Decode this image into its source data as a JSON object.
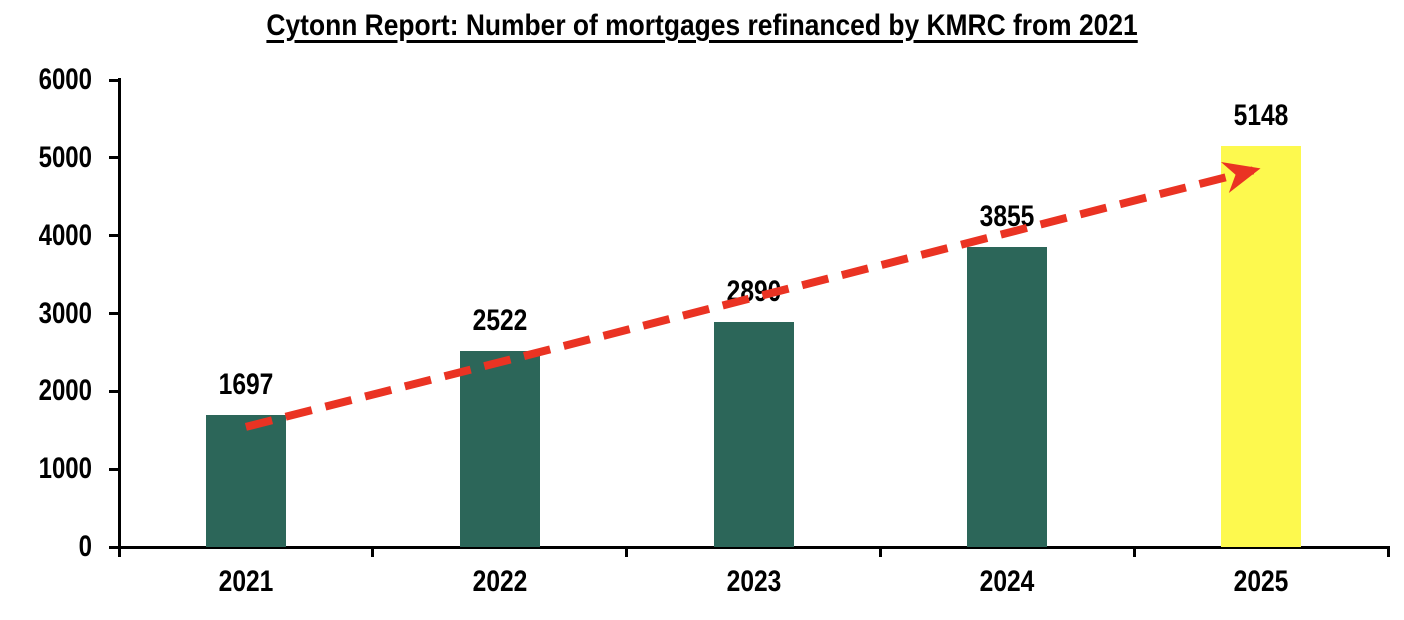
{
  "chart_data": {
    "type": "bar",
    "title": "Cytonn Report: Number of mortgages refinanced by KMRC from 2021",
    "categories": [
      "2021",
      "2022",
      "2023",
      "2024",
      "2025"
    ],
    "values": [
      1697,
      2522,
      2890,
      3855,
      5148
    ],
    "data_labels": [
      "1697",
      "2522",
      "2890",
      "3855",
      "5148"
    ],
    "xlabel": "",
    "ylabel": "",
    "ylim": [
      0,
      6000
    ],
    "y_tick_step": 1000,
    "y_ticks": [
      0,
      1000,
      2000,
      3000,
      4000,
      5000,
      6000
    ],
    "grid": false,
    "legend_position": "none",
    "bar_colors": [
      "#2C6659",
      "#2C6659",
      "#2C6659",
      "#2C6659",
      "#FDF94E"
    ],
    "annotations": {
      "trend_arrow": {
        "style": "dashed",
        "color": "#EA3323",
        "from_category": "2021",
        "to_category": "2025",
        "description": "red dashed upward trend arrow from 2021 bar top to 2025 bar top"
      }
    },
    "colors": {
      "bar_default": "#2C6659",
      "bar_highlight": "#FDF94E",
      "trend": "#EA3323",
      "axis": "#000000",
      "text": "#000000",
      "background": "#FFFFFF"
    }
  }
}
